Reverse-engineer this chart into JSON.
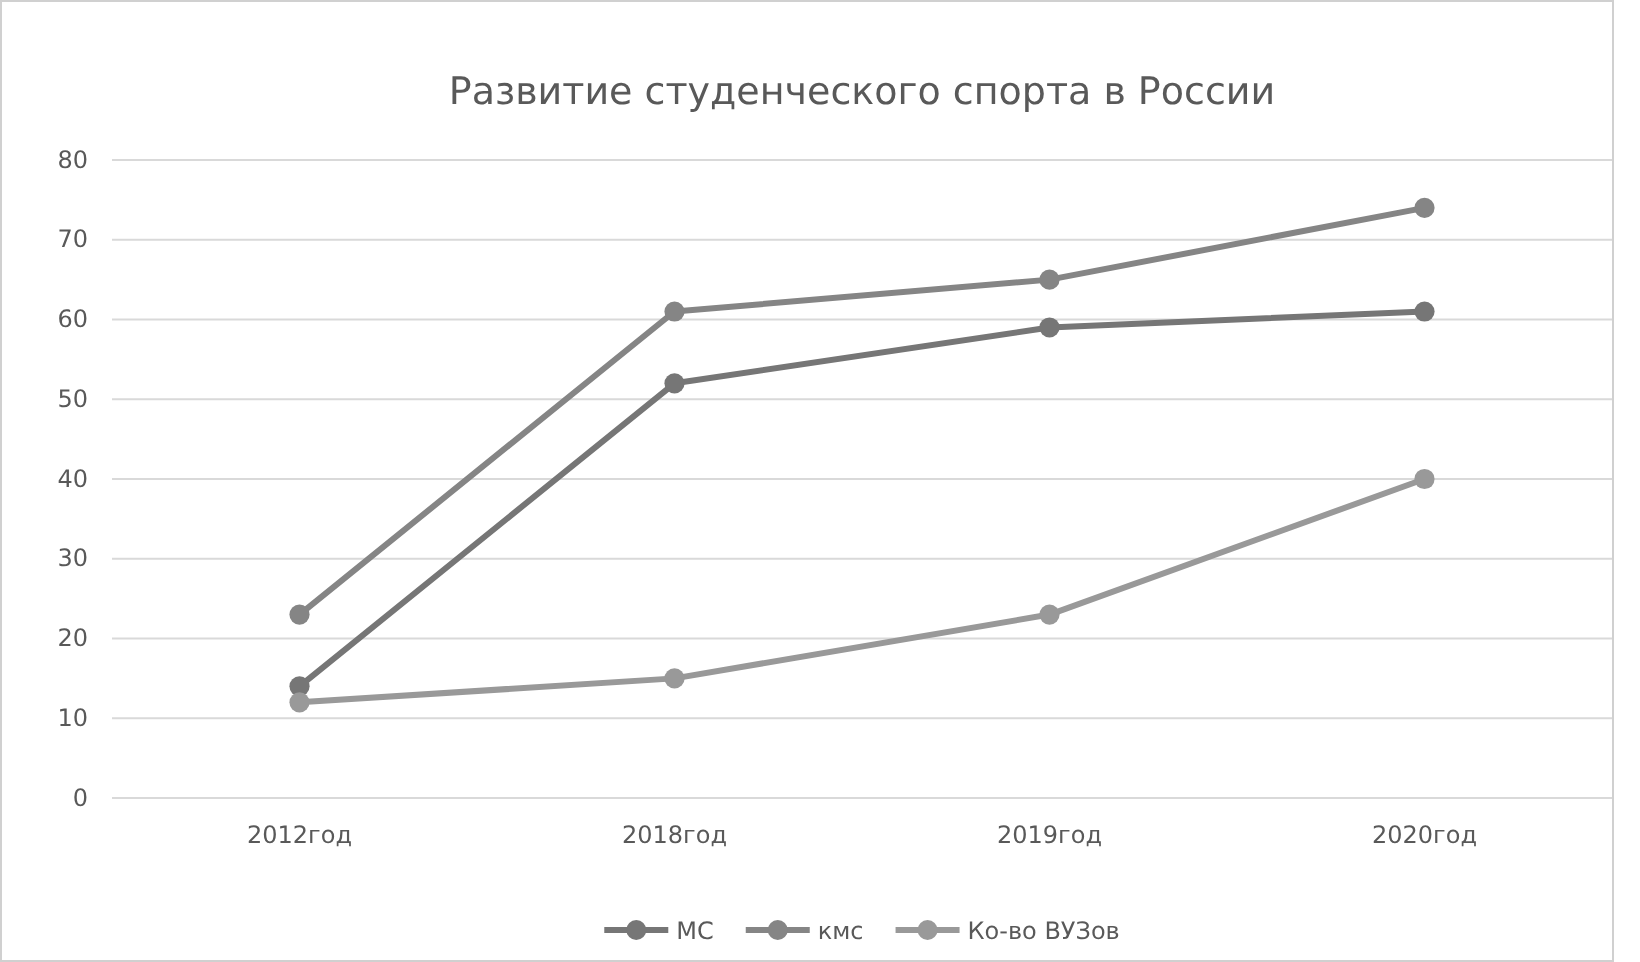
{
  "chart_data": {
    "type": "line",
    "title": "Развитие студенческого спорта в России",
    "categories": [
      "2012год",
      "2018год",
      "2019год",
      "2020год"
    ],
    "series": [
      {
        "name": "МС",
        "color": "#767676",
        "values": [
          14,
          52,
          59,
          61
        ]
      },
      {
        "name": "кмс",
        "color": "#858585",
        "values": [
          23,
          61,
          65,
          74
        ]
      },
      {
        "name": "Ко-во ВУЗов",
        "color": "#999999",
        "values": [
          12,
          15,
          23,
          40
        ]
      }
    ],
    "ylim": [
      0,
      80
    ],
    "yticks": [
      0,
      10,
      20,
      30,
      40,
      50,
      60,
      70,
      80
    ],
    "grid": "y",
    "legend": "bottom",
    "marker": "circle",
    "line_style": "solid"
  }
}
